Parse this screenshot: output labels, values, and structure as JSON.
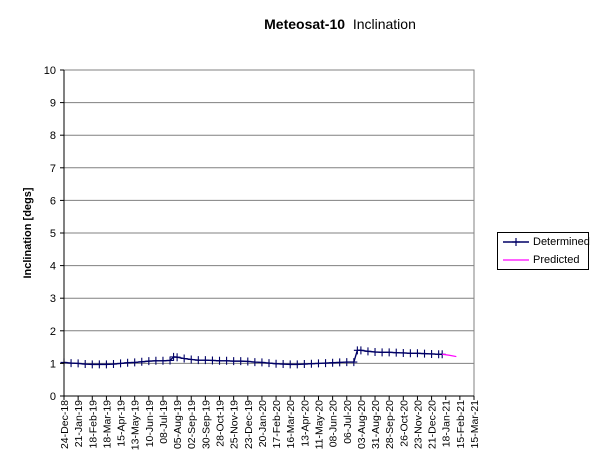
{
  "chart_data": {
    "type": "line",
    "title": "Meteosat-10",
    "subtitle": "Inclination",
    "xlabel": "",
    "ylabel": "Inclination [degs]",
    "ylim": [
      0,
      10
    ],
    "yticks": [
      "0",
      "1",
      "2",
      "3",
      "4",
      "5",
      "6",
      "7",
      "8",
      "9",
      "10"
    ],
    "xlim": [
      "2018-12-24",
      "2021-03-15"
    ],
    "xticks": [
      "24-Dec-18",
      "21-Jan-19",
      "18-Feb-19",
      "18-Mar-19",
      "15-Apr-19",
      "13-May-19",
      "10-Jun-19",
      "08-Jul-19",
      "05-Aug-19",
      "02-Sep-19",
      "30-Sep-19",
      "28-Oct-19",
      "25-Nov-19",
      "23-Dec-19",
      "20-Jan-20",
      "17-Feb-20",
      "16-Mar-20",
      "13-Apr-20",
      "11-May-20",
      "08-Jun-20",
      "06-Jul-20",
      "03-Aug-20",
      "31-Aug-20",
      "28-Sep-20",
      "26-Oct-20",
      "23-Nov-20",
      "21-Dec-20",
      "18-Jan-21",
      "15-Feb-21",
      "15-Mar-21"
    ],
    "grid": "horizontal",
    "legend_position": "right",
    "series": [
      {
        "name": "Determined",
        "color": "#000066",
        "marker": "plus",
        "points": [
          [
            "2018-12-24",
            1.03
          ],
          [
            "2019-01-07",
            1.01
          ],
          [
            "2019-01-21",
            1.0
          ],
          [
            "2019-02-04",
            0.98
          ],
          [
            "2019-02-18",
            0.97
          ],
          [
            "2019-03-04",
            0.97
          ],
          [
            "2019-03-18",
            0.97
          ],
          [
            "2019-04-01",
            0.98
          ],
          [
            "2019-04-15",
            1.0
          ],
          [
            "2019-04-29",
            1.02
          ],
          [
            "2019-05-13",
            1.03
          ],
          [
            "2019-05-27",
            1.05
          ],
          [
            "2019-06-10",
            1.07
          ],
          [
            "2019-06-24",
            1.08
          ],
          [
            "2019-07-08",
            1.08
          ],
          [
            "2019-07-22",
            1.09
          ],
          [
            "2019-07-29",
            1.2
          ],
          [
            "2019-08-05",
            1.19
          ],
          [
            "2019-08-19",
            1.15
          ],
          [
            "2019-09-02",
            1.12
          ],
          [
            "2019-09-16",
            1.1
          ],
          [
            "2019-09-30",
            1.1
          ],
          [
            "2019-10-14",
            1.09
          ],
          [
            "2019-10-28",
            1.08
          ],
          [
            "2019-11-11",
            1.08
          ],
          [
            "2019-11-25",
            1.07
          ],
          [
            "2019-12-09",
            1.07
          ],
          [
            "2019-12-23",
            1.06
          ],
          [
            "2020-01-06",
            1.04
          ],
          [
            "2020-01-20",
            1.03
          ],
          [
            "2020-02-03",
            1.01
          ],
          [
            "2020-02-17",
            0.99
          ],
          [
            "2020-03-02",
            0.98
          ],
          [
            "2020-03-16",
            0.97
          ],
          [
            "2020-03-30",
            0.97
          ],
          [
            "2020-04-13",
            0.98
          ],
          [
            "2020-04-27",
            0.99
          ],
          [
            "2020-05-11",
            1.0
          ],
          [
            "2020-05-25",
            1.01
          ],
          [
            "2020-06-08",
            1.02
          ],
          [
            "2020-06-22",
            1.03
          ],
          [
            "2020-07-06",
            1.04
          ],
          [
            "2020-07-20",
            1.04
          ],
          [
            "2020-07-27",
            1.4
          ],
          [
            "2020-08-03",
            1.4
          ],
          [
            "2020-08-17",
            1.37
          ],
          [
            "2020-08-31",
            1.35
          ],
          [
            "2020-09-14",
            1.34
          ],
          [
            "2020-09-28",
            1.34
          ],
          [
            "2020-10-12",
            1.33
          ],
          [
            "2020-10-26",
            1.32
          ],
          [
            "2020-11-09",
            1.31
          ],
          [
            "2020-11-23",
            1.31
          ],
          [
            "2020-12-07",
            1.3
          ],
          [
            "2020-12-21",
            1.29
          ],
          [
            "2021-01-04",
            1.28
          ],
          [
            "2021-01-11",
            1.28
          ]
        ]
      },
      {
        "name": "Predicted",
        "color": "#ff00ff",
        "marker": "none",
        "points": [
          [
            "2021-01-11",
            1.28
          ],
          [
            "2021-01-25",
            1.25
          ],
          [
            "2021-02-08",
            1.21
          ]
        ]
      }
    ]
  }
}
